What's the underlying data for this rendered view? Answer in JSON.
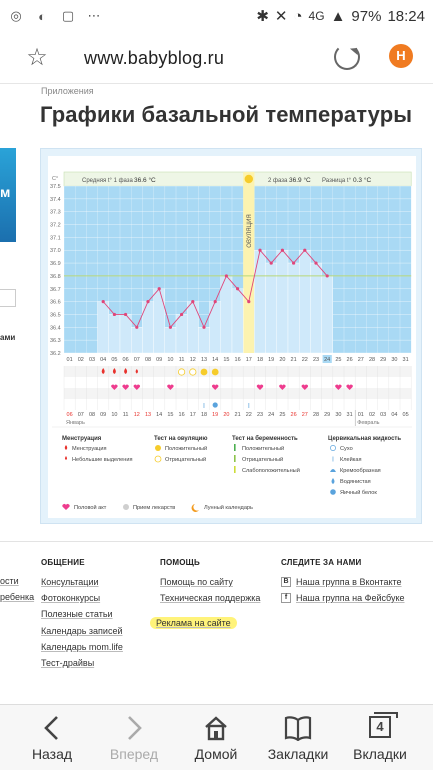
{
  "status_bar": {
    "left_icons": [
      "signal-app-icon",
      "chat-icon",
      "square-icon",
      "more-dots-icon"
    ],
    "network": "4G",
    "battery": "97%",
    "time": "18:24"
  },
  "browser": {
    "url": "www.babyblog.ru",
    "profile_initial": "Н"
  },
  "page": {
    "breadcrumb": "Приложения",
    "title": "Графики базальной температуры",
    "left_cut_text": "ами"
  },
  "chart_data": {
    "type": "line",
    "y_unit": "С°",
    "ylim": [
      36.2,
      37.5
    ],
    "y_ticks": [
      "37.5",
      "37.4",
      "37.3",
      "37.2",
      "37.1",
      "37.0",
      "36.9",
      "36.8",
      "36.7",
      "36.6",
      "36.5",
      "36.4",
      "36.3",
      "36.2"
    ],
    "phase1_label": "Средняя t° 1 фаза",
    "phase1_value": "36.6 °C",
    "phase2_label": "2 фаза",
    "phase2_value": "36.9 °C",
    "diff_label": "Разница t°",
    "diff_value": "0.3 °C",
    "ovulation_label": "ОВУЛЯЦИЯ",
    "cycle_days": [
      "01",
      "02",
      "03",
      "04",
      "05",
      "06",
      "07",
      "08",
      "09",
      "10",
      "11",
      "12",
      "13",
      "14",
      "15",
      "16",
      "17",
      "18",
      "19",
      "20",
      "21",
      "22",
      "23",
      "24",
      "25",
      "26",
      "27",
      "28",
      "29",
      "30",
      "31"
    ],
    "highlight_day": "24",
    "ovulation_day": 17,
    "cycle_days_phase2": [
      "01",
      "02",
      "03",
      "04",
      "05",
      "06",
      "07",
      "08",
      "09",
      "10",
      "11",
      "12",
      "13",
      "14"
    ],
    "series": [
      {
        "x": [
          4,
          5,
          6,
          7,
          8,
          9,
          10,
          11,
          12,
          13,
          14,
          15,
          16,
          17,
          18,
          19,
          20,
          21,
          22,
          23,
          24
        ],
        "values": [
          36.6,
          36.5,
          36.5,
          36.4,
          36.6,
          36.7,
          36.4,
          36.5,
          36.6,
          36.4,
          36.6,
          36.8,
          36.7,
          36.6,
          37.0,
          36.9,
          37.0,
          36.9,
          37.0,
          36.9,
          36.8
        ]
      }
    ],
    "cover_line": 36.8,
    "markers": {
      "menstruation": [
        4,
        5,
        6
      ],
      "light_discharge": [
        7
      ],
      "ovulation_test_neg": [
        11,
        12
      ],
      "ovulation_test_pos": [
        13,
        14
      ],
      "intercourse": [
        5,
        6,
        7,
        10,
        14,
        18,
        20,
        22,
        25,
        26
      ],
      "mucus_sticky": [
        13,
        17
      ],
      "mucus_egg_white": [
        14
      ]
    },
    "date_labels": [
      "06",
      "07",
      "08",
      "09",
      "10",
      "11",
      "12",
      "13",
      "14",
      "15",
      "16",
      "17",
      "18",
      "19",
      "20",
      "21",
      "22",
      "23",
      "24",
      "25",
      "26",
      "27",
      "28",
      "29",
      "30",
      "31",
      "01",
      "02",
      "03",
      "04",
      "05"
    ],
    "date_red_days": [
      "06",
      "12",
      "13",
      "19",
      "20",
      "26",
      "27"
    ],
    "highlight_date": "29",
    "month1": "Январь",
    "month2": "Февраль",
    "legend": {
      "menstruation_title": "Менструация",
      "menstruation_items": [
        "Менструация",
        "Небольшие выделения"
      ],
      "ovulation_title": "Тест на овуляцию",
      "ovulation_items": [
        "Положительный",
        "Отрицательный"
      ],
      "pregnancy_title": "Тест на беременность",
      "pregnancy_items": [
        "Положительный",
        "Отрицательный",
        "Слабоположительный"
      ],
      "mucus_title": "Цервикальная жидкость",
      "mucus_items": [
        "Сухо",
        "Клейкая",
        "Кремообразная",
        "Водянистая",
        "Яичный белок"
      ],
      "bottom_items": [
        "Половой акт",
        "Прием лекарств",
        "Лунный календарь"
      ]
    },
    "colors": {
      "plot_bg": "#a9d9f4",
      "bar_fill": "#cfe9fa",
      "line": "#e0467a",
      "ovulation": "#fcf3b0",
      "cover_line": "#b9d878",
      "marker_red": "#e8322d",
      "marker_yellow": "#f6cc2b",
      "marker_pink": "#ee3c8e",
      "marker_blue": "#5aa3dd"
    }
  },
  "footer": {
    "col1": {
      "title": "ОБЩЕНИЕ",
      "links": [
        "Консультации",
        "Фотоконкурсы",
        "Полезные статьи",
        "Календарь записей",
        "Календарь mom.life",
        "Тест-драйвы"
      ]
    },
    "col2": {
      "title": "ПОМОЩЬ",
      "links": [
        "Помощь по сайту",
        "Техническая поддержка",
        "Реклама на сайте"
      ]
    },
    "col3": {
      "title": "СЛЕДИТЕ ЗА НАМИ",
      "links": [
        "Наша группа в Вконтакте",
        "Наша группа на Фейсбуке"
      ],
      "icons": [
        "В",
        "f"
      ]
    },
    "left_cut": [
      "ости",
      "ребенка"
    ]
  },
  "bottom_nav": {
    "back": "Назад",
    "forward": "Вперед",
    "home": "Домой",
    "bookmarks": "Закладки",
    "tabs": "Вкладки",
    "tabs_count": "4"
  }
}
